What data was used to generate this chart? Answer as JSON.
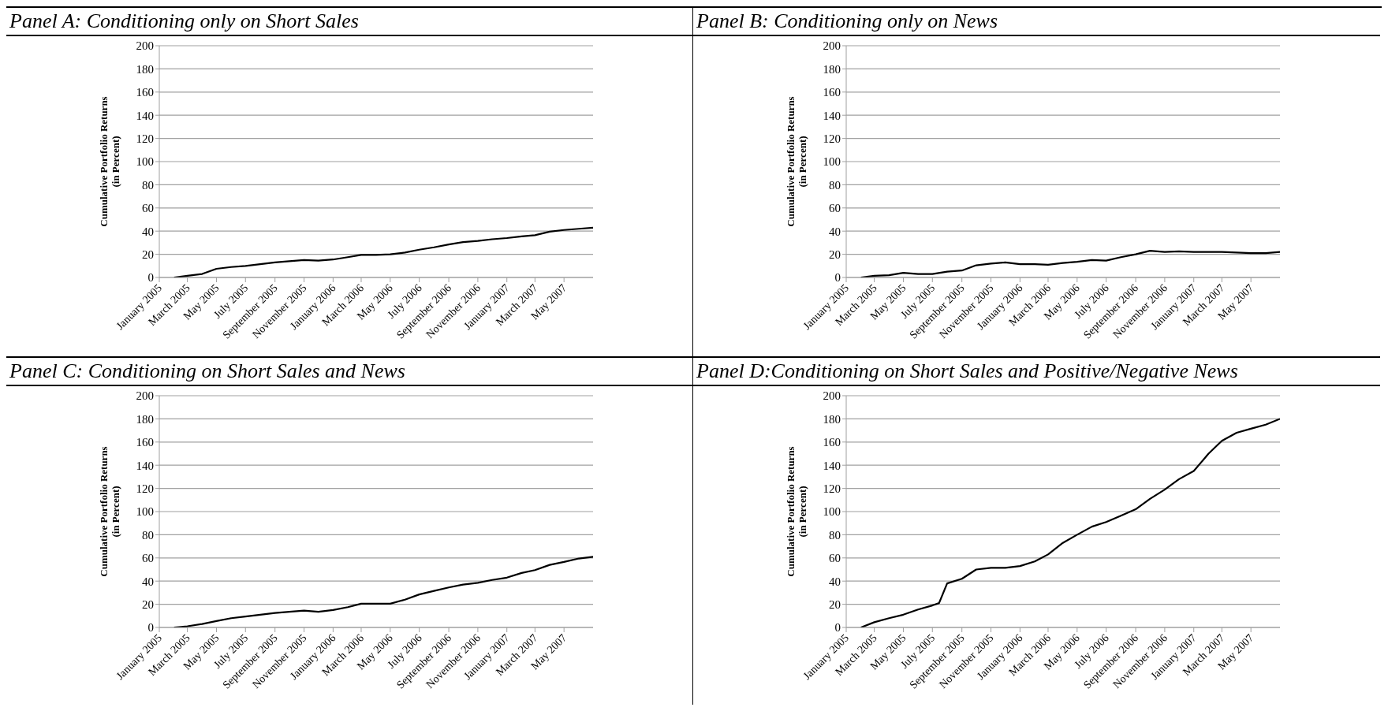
{
  "chart_data": [
    {
      "type": "line",
      "title": "Panel A: Conditioning only on Short Sales",
      "ylabel": "Cumulative Portfolio Returns\n(in Percent)",
      "color": "#000000",
      "marker": "none",
      "grid": "y",
      "x": [
        "2005-02",
        "2005-03",
        "2005-04",
        "2005-05",
        "2005-06",
        "2005-07",
        "2005-08",
        "2005-09",
        "2005-10",
        "2005-11",
        "2005-12",
        "2006-01",
        "2006-02",
        "2006-03",
        "2006-04",
        "2006-05",
        "2006-06",
        "2006-07",
        "2006-08",
        "2006-09",
        "2006-10",
        "2006-11",
        "2006-12",
        "2007-01",
        "2007-02",
        "2007-03",
        "2007-04",
        "2007-05",
        "2007-06",
        "2007-07"
      ],
      "values": [
        0,
        1.5,
        3,
        7.5,
        9,
        10,
        11.5,
        13,
        14,
        15,
        14.5,
        15.5,
        17.5,
        19.5,
        19.5,
        20,
        21.5,
        24,
        26,
        28.5,
        30.5,
        31.5,
        33,
        34,
        35.5,
        36.5,
        39.5,
        41,
        42,
        43
      ],
      "xlim": [
        "2005-01",
        "2007-07"
      ],
      "ylim": [
        0,
        200
      ],
      "yticks": [
        0,
        20,
        40,
        60,
        80,
        100,
        120,
        140,
        160,
        180,
        200
      ],
      "xticks": [
        {
          "value": "2005-01",
          "label": "January 2005"
        },
        {
          "value": "2005-03",
          "label": "March 2005"
        },
        {
          "value": "2005-05",
          "label": "May 2005"
        },
        {
          "value": "2005-07",
          "label": "July 2005"
        },
        {
          "value": "2005-09",
          "label": "September 2005"
        },
        {
          "value": "2005-11",
          "label": "November 2005"
        },
        {
          "value": "2006-01",
          "label": "January 2006"
        },
        {
          "value": "2006-03",
          "label": "March 2006"
        },
        {
          "value": "2006-05",
          "label": "May 2006"
        },
        {
          "value": "2006-07",
          "label": "July 2006"
        },
        {
          "value": "2006-09",
          "label": "September 2006"
        },
        {
          "value": "2006-11",
          "label": "November 2006"
        },
        {
          "value": "2007-01",
          "label": "January 2007"
        },
        {
          "value": "2007-03",
          "label": "March 2007"
        },
        {
          "value": "2007-05",
          "label": "May 2007"
        }
      ]
    },
    {
      "type": "line",
      "title": "Panel B: Conditioning only on News",
      "ylabel": "Cumulative Portfolio Returns\n(in Percent)",
      "color": "#000000",
      "marker": "none",
      "grid": "y",
      "x": [
        "2005-02",
        "2005-03",
        "2005-04",
        "2005-05",
        "2005-06",
        "2005-07",
        "2005-08",
        "2005-09",
        "2005-10",
        "2005-11",
        "2005-12",
        "2006-01",
        "2006-02",
        "2006-03",
        "2006-04",
        "2006-05",
        "2006-06",
        "2006-07",
        "2006-08",
        "2006-09",
        "2006-10",
        "2006-11",
        "2006-12",
        "2007-01",
        "2007-02",
        "2007-03",
        "2007-04",
        "2007-05",
        "2007-06",
        "2007-07"
      ],
      "values": [
        0,
        1.5,
        2,
        4,
        3,
        3,
        5,
        6,
        10.5,
        12,
        13,
        11.5,
        11.5,
        11,
        12.5,
        13.5,
        15,
        14.5,
        17.5,
        20,
        23,
        22,
        22.5,
        22,
        22,
        22,
        21.5,
        21,
        21,
        22
      ],
      "xlim": [
        "2005-01",
        "2007-07"
      ],
      "ylim": [
        0,
        200
      ],
      "yticks": [
        0,
        20,
        40,
        60,
        80,
        100,
        120,
        140,
        160,
        180,
        200
      ],
      "xticks": [
        {
          "value": "2005-01",
          "label": "January 2005"
        },
        {
          "value": "2005-03",
          "label": "March 2005"
        },
        {
          "value": "2005-05",
          "label": "May 2005"
        },
        {
          "value": "2005-07",
          "label": "July 2005"
        },
        {
          "value": "2005-09",
          "label": "September 2005"
        },
        {
          "value": "2005-11",
          "label": "November 2005"
        },
        {
          "value": "2006-01",
          "label": "January 2006"
        },
        {
          "value": "2006-03",
          "label": "March 2006"
        },
        {
          "value": "2006-05",
          "label": "May 2006"
        },
        {
          "value": "2006-07",
          "label": "July 2006"
        },
        {
          "value": "2006-09",
          "label": "September 2006"
        },
        {
          "value": "2006-11",
          "label": "November 2006"
        },
        {
          "value": "2007-01",
          "label": "January 2007"
        },
        {
          "value": "2007-03",
          "label": "March 2007"
        },
        {
          "value": "2007-05",
          "label": "May 2007"
        }
      ]
    },
    {
      "type": "line",
      "title": "Panel C: Conditioning on Short Sales and News",
      "ylabel": "Cumulative Portfolio Returns\n(in Percent)",
      "color": "#000000",
      "marker": "none",
      "grid": "y",
      "x": [
        "2005-02",
        "2005-03",
        "2005-04",
        "2005-05",
        "2005-06",
        "2005-07",
        "2005-08",
        "2005-09",
        "2005-10",
        "2005-11",
        "2005-12",
        "2006-01",
        "2006-02",
        "2006-03",
        "2006-04",
        "2006-05",
        "2006-06",
        "2006-07",
        "2006-08",
        "2006-09",
        "2006-10",
        "2006-11",
        "2006-12",
        "2007-01",
        "2007-02",
        "2007-03",
        "2007-04",
        "2007-05",
        "2007-06",
        "2007-07"
      ],
      "values": [
        0,
        1,
        3,
        5.5,
        8,
        9.5,
        11,
        12.5,
        13.5,
        14.5,
        13.5,
        15,
        17.5,
        20.5,
        20.5,
        20.5,
        24,
        28.5,
        31.5,
        34.5,
        37,
        38.5,
        41,
        43,
        47,
        49.5,
        54,
        56.5,
        59.5,
        61
      ],
      "xlim": [
        "2005-01",
        "2007-07"
      ],
      "ylim": [
        0,
        200
      ],
      "yticks": [
        0,
        20,
        40,
        60,
        80,
        100,
        120,
        140,
        160,
        180,
        200
      ],
      "xticks": [
        {
          "value": "2005-01",
          "label": "January 2005"
        },
        {
          "value": "2005-03",
          "label": "March 2005"
        },
        {
          "value": "2005-05",
          "label": "May 2005"
        },
        {
          "value": "2005-07",
          "label": "July 2005"
        },
        {
          "value": "2005-09",
          "label": "September 2005"
        },
        {
          "value": "2005-11",
          "label": "November 2005"
        },
        {
          "value": "2006-01",
          "label": "January 2006"
        },
        {
          "value": "2006-03",
          "label": "March 2006"
        },
        {
          "value": "2006-05",
          "label": "May 2006"
        },
        {
          "value": "2006-07",
          "label": "July 2006"
        },
        {
          "value": "2006-09",
          "label": "September 2006"
        },
        {
          "value": "2006-11",
          "label": "November 2006"
        },
        {
          "value": "2007-01",
          "label": "January 2007"
        },
        {
          "value": "2007-03",
          "label": "March 2007"
        },
        {
          "value": "2007-05",
          "label": "May 2007"
        }
      ]
    },
    {
      "type": "line",
      "title": "Panel D:Conditioning on Short Sales and Positive/Negative News",
      "ylabel": "Cumulative Portfolio Returns\n(in Percent)",
      "color": "#000000",
      "marker": "none",
      "grid": "y",
      "x": [
        "2005-02",
        "2005-03",
        "2005-04",
        "2005-05",
        "2005-06",
        "2005-07",
        "2005-07-15",
        "2005-08",
        "2005-09",
        "2005-10",
        "2005-11",
        "2005-12",
        "2006-01",
        "2006-02",
        "2006-03",
        "2006-04",
        "2006-05",
        "2006-06",
        "2006-07",
        "2006-08",
        "2006-09",
        "2006-10",
        "2006-11",
        "2006-12",
        "2007-01",
        "2007-02",
        "2007-03",
        "2007-04",
        "2007-05",
        "2007-06",
        "2007-07"
      ],
      "values": [
        0,
        4.5,
        8,
        11,
        15.5,
        19,
        21,
        38,
        42,
        50,
        51.5,
        51.5,
        53,
        57,
        63,
        73,
        80,
        87,
        91,
        96.5,
        102,
        111,
        119,
        128,
        135,
        150,
        161,
        168,
        171.5,
        175,
        180
      ],
      "xlim": [
        "2005-01",
        "2007-07"
      ],
      "ylim": [
        0,
        200
      ],
      "yticks": [
        0,
        20,
        40,
        60,
        80,
        100,
        120,
        140,
        160,
        180,
        200
      ],
      "xticks": [
        {
          "value": "2005-01",
          "label": "January 2005"
        },
        {
          "value": "2005-03",
          "label": "March 2005"
        },
        {
          "value": "2005-05",
          "label": "May 2005"
        },
        {
          "value": "2005-07",
          "label": "July 2005"
        },
        {
          "value": "2005-09",
          "label": "September 2005"
        },
        {
          "value": "2005-11",
          "label": "November 2005"
        },
        {
          "value": "2006-01",
          "label": "January 2006"
        },
        {
          "value": "2006-03",
          "label": "March 2006"
        },
        {
          "value": "2006-05",
          "label": "May 2006"
        },
        {
          "value": "2006-07",
          "label": "July 2006"
        },
        {
          "value": "2006-09",
          "label": "September 2006"
        },
        {
          "value": "2006-11",
          "label": "November 2006"
        },
        {
          "value": "2007-01",
          "label": "January 2007"
        },
        {
          "value": "2007-03",
          "label": "March 2007"
        },
        {
          "value": "2007-05",
          "label": "May 2007"
        }
      ]
    }
  ]
}
